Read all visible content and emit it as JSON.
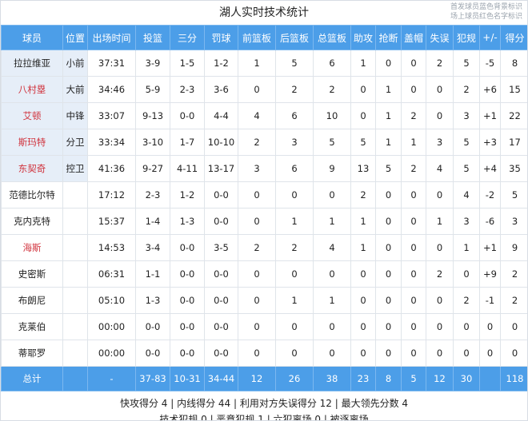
{
  "title": "湖人实时技术统计",
  "legend": [
    "首发球员蓝色背景标识",
    "场上球员红色名字标识"
  ],
  "colors": {
    "header": "#4c9ee8",
    "starter_bg": "#e6eef8",
    "on_court_name": "#d0323c"
  },
  "columns": [
    "球员",
    "位置",
    "出场时间",
    "投篮",
    "三分",
    "罚球",
    "前篮板",
    "后篮板",
    "总篮板",
    "助攻",
    "抢断",
    "盖帽",
    "失误",
    "犯规",
    "+/-",
    "得分"
  ],
  "players": [
    {
      "name": "拉拉维亚",
      "pos": "小前",
      "starter": true,
      "on_court": false,
      "stats": [
        "37:31",
        "3-9",
        "1-5",
        "1-2",
        "1",
        "5",
        "6",
        "1",
        "0",
        "0",
        "2",
        "5",
        "-5",
        "8"
      ]
    },
    {
      "name": "八村塁",
      "pos": "大前",
      "starter": true,
      "on_court": true,
      "stats": [
        "34:46",
        "5-9",
        "2-3",
        "3-6",
        "0",
        "2",
        "2",
        "0",
        "1",
        "0",
        "0",
        "2",
        "+6",
        "15"
      ]
    },
    {
      "name": "艾顿",
      "pos": "中锋",
      "starter": true,
      "on_court": true,
      "stats": [
        "33:07",
        "9-13",
        "0-0",
        "4-4",
        "4",
        "6",
        "10",
        "0",
        "1",
        "2",
        "0",
        "3",
        "+1",
        "22"
      ]
    },
    {
      "name": "斯玛特",
      "pos": "分卫",
      "starter": true,
      "on_court": true,
      "stats": [
        "33:34",
        "3-10",
        "1-7",
        "10-10",
        "2",
        "3",
        "5",
        "5",
        "1",
        "1",
        "3",
        "5",
        "+3",
        "17"
      ]
    },
    {
      "name": "东契奇",
      "pos": "控卫",
      "starter": true,
      "on_court": true,
      "stats": [
        "41:36",
        "9-27",
        "4-11",
        "13-17",
        "3",
        "6",
        "9",
        "13",
        "5",
        "2",
        "4",
        "5",
        "+4",
        "35"
      ]
    },
    {
      "name": "范德比尔特",
      "pos": "",
      "starter": false,
      "on_court": false,
      "stats": [
        "17:12",
        "2-3",
        "1-2",
        "0-0",
        "0",
        "0",
        "0",
        "2",
        "0",
        "0",
        "0",
        "4",
        "-2",
        "5"
      ]
    },
    {
      "name": "克内克特",
      "pos": "",
      "starter": false,
      "on_court": false,
      "stats": [
        "15:37",
        "1-4",
        "1-3",
        "0-0",
        "0",
        "1",
        "1",
        "1",
        "0",
        "0",
        "1",
        "3",
        "-6",
        "3"
      ]
    },
    {
      "name": "海斯",
      "pos": "",
      "starter": false,
      "on_court": true,
      "stats": [
        "14:53",
        "3-4",
        "0-0",
        "3-5",
        "2",
        "2",
        "4",
        "1",
        "0",
        "0",
        "0",
        "1",
        "+1",
        "9"
      ]
    },
    {
      "name": "史密斯",
      "pos": "",
      "starter": false,
      "on_court": false,
      "stats": [
        "06:31",
        "1-1",
        "0-0",
        "0-0",
        "0",
        "0",
        "0",
        "0",
        "0",
        "0",
        "2",
        "0",
        "+9",
        "2"
      ]
    },
    {
      "name": "布朗尼",
      "pos": "",
      "starter": false,
      "on_court": false,
      "stats": [
        "05:10",
        "1-3",
        "0-0",
        "0-0",
        "0",
        "1",
        "1",
        "0",
        "0",
        "0",
        "0",
        "2",
        "-1",
        "2"
      ]
    },
    {
      "name": "克莱伯",
      "pos": "",
      "starter": false,
      "on_court": false,
      "stats": [
        "00:00",
        "0-0",
        "0-0",
        "0-0",
        "0",
        "0",
        "0",
        "0",
        "0",
        "0",
        "0",
        "0",
        "0",
        "0"
      ]
    },
    {
      "name": "蒂耶罗",
      "pos": "",
      "starter": false,
      "on_court": false,
      "stats": [
        "00:00",
        "0-0",
        "0-0",
        "0-0",
        "0",
        "0",
        "0",
        "0",
        "0",
        "0",
        "0",
        "0",
        "0",
        "0"
      ]
    }
  ],
  "totals": {
    "label": "总计",
    "pos": "",
    "stats": [
      "-",
      "37-83",
      "10-31",
      "34-44",
      "12",
      "26",
      "38",
      "23",
      "8",
      "5",
      "12",
      "30",
      "",
      "118"
    ]
  },
  "footer": [
    "快攻得分 4 | 内线得分 44 | 利用对方失误得分 12 | 最大领先分数 4",
    "技术犯规 0 | 恶意犯规 1 | 六犯离场 0 | 被逐离场"
  ]
}
